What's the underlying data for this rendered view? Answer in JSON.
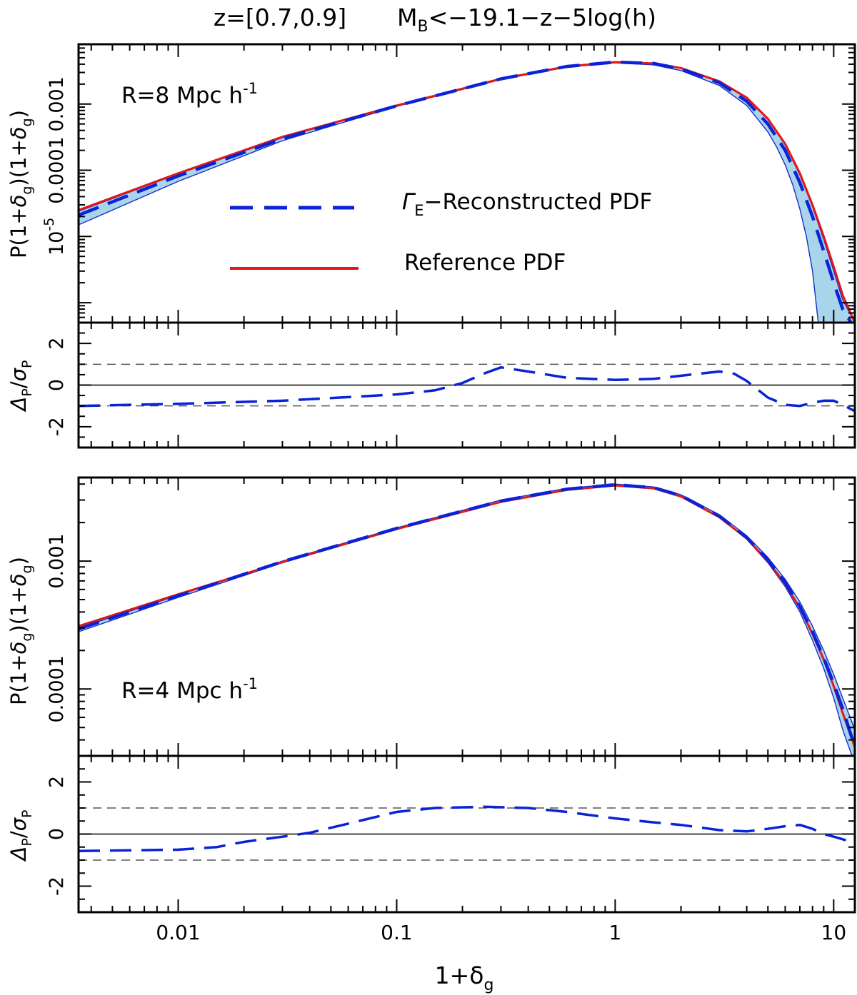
{
  "figure": {
    "title_left": "z=[0.7,0.9]",
    "title_mag": "M",
    "title_mag_sub": "B",
    "title_right": "<−19.1−z−5log(h)"
  },
  "colors": {
    "reconstructed": "#0a22d8",
    "reference": "#e01818",
    "band": "#a9d5ea",
    "band_edge": "#1a2cc8",
    "axis": "#000000",
    "reference_line": "#555555"
  },
  "legend": {
    "reconstructed_main": "Γ",
    "reconstructed_sub": "E",
    "reconstructed_rest": "−Reconstructed PDF",
    "reference": "Reference PDF"
  },
  "xaxis": {
    "label_main": "1+δ",
    "label_sub": "g",
    "ticks": [
      {
        "value": 0.01,
        "label": "0.01"
      },
      {
        "value": 0.1,
        "label": "0.1"
      },
      {
        "value": 1,
        "label": "1"
      },
      {
        "value": 10,
        "label": "10"
      }
    ]
  },
  "chart_data": [
    {
      "type": "line",
      "panel": "top_pdf",
      "annotation": {
        "main": "R=8 Mpc h",
        "sup": "-1"
      },
      "ylabel": "P(1+δ_g)(1+δ_g)",
      "xlim": [
        0.0035,
        12.5
      ],
      "ylim": [
        5e-07,
        0.008
      ],
      "yscale": "log",
      "yticks": [
        {
          "value": 1e-05,
          "label": "10",
          "sup": "-5"
        },
        {
          "value": 0.0001,
          "label": "0.0001"
        },
        {
          "value": 0.001,
          "label": "0.001"
        }
      ],
      "series": [
        {
          "name": "Reference PDF",
          "x": [
            0.0035,
            0.01,
            0.03,
            0.1,
            0.3,
            0.6,
            1.0,
            1.5,
            2.0,
            3.0,
            4.0,
            5.0,
            6.0,
            7.0,
            8.0,
            9.0,
            10.0,
            11.0,
            12.5
          ],
          "y": [
            2.5e-05,
            9e-05,
            0.00032,
            0.00095,
            0.0024,
            0.0037,
            0.0043,
            0.0041,
            0.0035,
            0.0022,
            0.00125,
            0.0006,
            0.00025,
            9e-05,
            3e-05,
            1e-05,
            3.5e-06,
            1.3e-06,
            5e-07
          ]
        },
        {
          "name": "Γ_E-Reconstructed PDF",
          "x": [
            0.0035,
            0.01,
            0.03,
            0.1,
            0.3,
            0.6,
            1.0,
            1.5,
            2.0,
            3.0,
            4.0,
            5.0,
            6.0,
            7.0,
            8.0,
            9.0,
            10.0,
            11.0,
            12.0
          ],
          "y": [
            2.1e-05,
            8.2e-05,
            0.0003,
            0.00094,
            0.0024,
            0.0037,
            0.0043,
            0.0041,
            0.0034,
            0.0021,
            0.0011,
            0.0005,
            0.0002,
            6.5e-05,
            2e-05,
            6e-06,
            2e-06,
            8e-07,
            5e-07
          ]
        },
        {
          "name": "band_upper",
          "x": [
            0.0035,
            0.01,
            0.03,
            0.1,
            0.3,
            0.6,
            1.0,
            1.5,
            2.0,
            3.0,
            4.0,
            5.0,
            6.0,
            7.0,
            8.0,
            9.0,
            10.0,
            11.0,
            12.5
          ],
          "y": [
            2.4e-05,
            8.8e-05,
            0.00031,
            0.00096,
            0.00245,
            0.0037,
            0.0043,
            0.00412,
            0.00352,
            0.00222,
            0.00124,
            0.0006,
            0.00024,
            8.5e-05,
            2.8e-05,
            9e-06,
            3e-06,
            1.1e-06,
            5e-07
          ]
        },
        {
          "name": "band_lower",
          "x": [
            0.0035,
            0.01,
            0.03,
            0.1,
            0.3,
            0.6,
            1.0,
            1.5,
            2.0,
            3.0,
            4.0,
            5.0,
            5.5,
            6.0,
            6.5,
            7.0,
            7.5,
            8.0,
            8.5
          ],
          "y": [
            1.5e-05,
            6.8e-05,
            0.00028,
            0.00092,
            0.00235,
            0.0036,
            0.0042,
            0.0039,
            0.0032,
            0.0019,
            0.00095,
            0.00038,
            0.00022,
            0.00012,
            6e-05,
            2.6e-05,
            1e-05,
            3e-06,
            5e-07
          ]
        }
      ]
    },
    {
      "type": "line",
      "panel": "top_residual",
      "ylabel": "Δ_P/σ_P",
      "xlim": [
        0.0035,
        12.5
      ],
      "ylim": [
        -3,
        3
      ],
      "yticks": [
        {
          "value": -2,
          "label": "-2"
        },
        {
          "value": 0,
          "label": "0"
        },
        {
          "value": 2,
          "label": "2"
        }
      ],
      "reference_lines": [
        1,
        -1
      ],
      "series": [
        {
          "name": "Δ_P/σ_P",
          "x": [
            0.0035,
            0.01,
            0.03,
            0.1,
            0.15,
            0.2,
            0.25,
            0.3,
            0.4,
            0.6,
            1.0,
            1.5,
            2.0,
            3.0,
            3.5,
            4.0,
            5.0,
            6.0,
            7.0,
            8.0,
            9.0,
            10.0,
            11.0,
            12.5
          ],
          "y": [
            -1.0,
            -0.9,
            -0.75,
            -0.45,
            -0.25,
            0.1,
            0.55,
            0.85,
            0.65,
            0.35,
            0.25,
            0.3,
            0.45,
            0.65,
            0.55,
            0.2,
            -0.6,
            -0.95,
            -1.0,
            -0.85,
            -0.75,
            -0.75,
            -0.95,
            -1.25
          ]
        }
      ]
    },
    {
      "type": "line",
      "panel": "bottom_pdf",
      "annotation": {
        "main": "R=4 Mpc h",
        "sup": "-1"
      },
      "ylabel": "P(1+δ_g)(1+δ_g)",
      "xlim": [
        0.0035,
        12.5
      ],
      "ylim": [
        3e-05,
        0.0045
      ],
      "yscale": "log",
      "yticks": [
        {
          "value": 0.0001,
          "label": "0.0001"
        },
        {
          "value": 0.001,
          "label": "0.001"
        }
      ],
      "series": [
        {
          "name": "Reference PDF",
          "x": [
            0.0035,
            0.01,
            0.03,
            0.1,
            0.3,
            0.6,
            1.0,
            1.5,
            2.0,
            3.0,
            4.0,
            5.0,
            6.0,
            7.0,
            8.0,
            9.0,
            10.0,
            11.0,
            12.5
          ],
          "y": [
            0.00031,
            0.00055,
            0.00098,
            0.00178,
            0.0029,
            0.0036,
            0.0039,
            0.0037,
            0.0032,
            0.0022,
            0.0015,
            0.001,
            0.00066,
            0.00043,
            0.00027,
            0.00017,
            0.000105,
            6.5e-05,
            3.5e-05
          ]
        },
        {
          "name": "Γ_E-Reconstructed PDF",
          "x": [
            0.0035,
            0.01,
            0.03,
            0.1,
            0.3,
            0.6,
            1.0,
            1.5,
            2.0,
            3.0,
            4.0,
            5.0,
            6.0,
            7.0,
            8.0,
            9.0,
            10.0,
            11.0,
            12.5
          ],
          "y": [
            0.000295,
            0.000535,
            0.00099,
            0.0018,
            0.00295,
            0.00365,
            0.00395,
            0.00375,
            0.00325,
            0.00225,
            0.00153,
            0.00102,
            0.00068,
            0.00044,
            0.00028,
            0.000175,
            0.00011,
            7e-05,
            3.5e-05
          ]
        },
        {
          "name": "band_upper",
          "x": [
            0.0035,
            0.01,
            0.03,
            0.1,
            0.3,
            0.6,
            1.0,
            1.5,
            2.0,
            3.0,
            4.0,
            5.0,
            6.0,
            7.0,
            8.0,
            9.0,
            10.0,
            11.0,
            12.5
          ],
          "y": [
            0.0003,
            0.00054,
            0.001,
            0.00182,
            0.003,
            0.0037,
            0.004,
            0.0038,
            0.0033,
            0.0023,
            0.00158,
            0.00107,
            0.00072,
            0.00048,
            0.00031,
            0.0002,
            0.00013,
            8.5e-05,
            4.8e-05
          ]
        },
        {
          "name": "band_lower",
          "x": [
            0.0035,
            0.01,
            0.03,
            0.1,
            0.3,
            0.6,
            1.0,
            1.5,
            2.0,
            3.0,
            4.0,
            5.0,
            6.0,
            7.0,
            8.0,
            9.0,
            10.0,
            11.0,
            12.5
          ],
          "y": [
            0.00028,
            0.00052,
            0.00097,
            0.00177,
            0.0029,
            0.0036,
            0.0039,
            0.0037,
            0.0032,
            0.0022,
            0.00148,
            0.00097,
            0.00063,
            0.0004,
            0.00024,
            0.000145,
            8.5e-05,
            4.8e-05,
            2.6e-05
          ]
        }
      ]
    },
    {
      "type": "line",
      "panel": "bottom_residual",
      "ylabel": "Δ_P/σ_P",
      "xlim": [
        0.0035,
        12.5
      ],
      "ylim": [
        -3,
        3
      ],
      "yticks": [
        {
          "value": -2,
          "label": "-2"
        },
        {
          "value": 0,
          "label": "0"
        },
        {
          "value": 2,
          "label": "2"
        }
      ],
      "reference_lines": [
        1,
        -1
      ],
      "series": [
        {
          "name": "Δ_P/σ_P",
          "x": [
            0.0035,
            0.01,
            0.015,
            0.02,
            0.03,
            0.04,
            0.06,
            0.1,
            0.15,
            0.25,
            0.4,
            0.6,
            1.0,
            1.5,
            2.0,
            3.0,
            4.0,
            5.0,
            6.0,
            7.0,
            8.0,
            9.0,
            10.0,
            11.0,
            12.5
          ],
          "y": [
            -0.65,
            -0.6,
            -0.5,
            -0.3,
            -0.1,
            0.05,
            0.4,
            0.85,
            1.0,
            1.05,
            1.0,
            0.85,
            0.6,
            0.45,
            0.35,
            0.15,
            0.1,
            0.2,
            0.3,
            0.35,
            0.2,
            0.0,
            -0.1,
            -0.2,
            -0.35
          ]
        }
      ]
    }
  ]
}
